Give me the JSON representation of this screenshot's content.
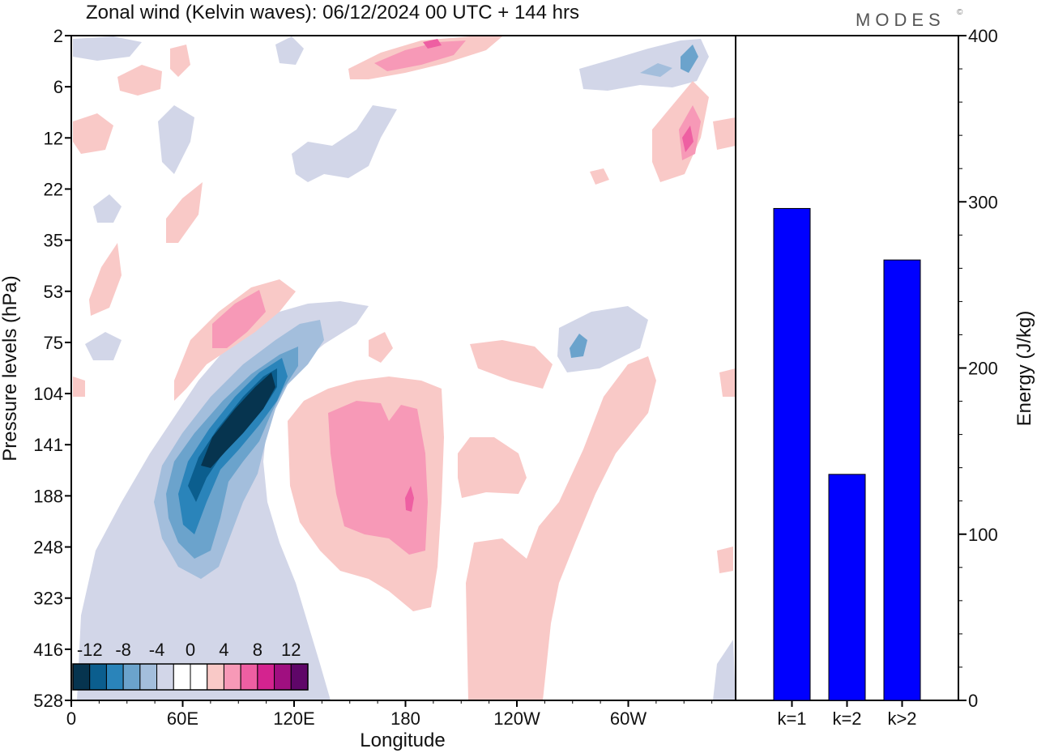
{
  "brand": "MODES",
  "brand_mark": "©",
  "chart_data": [
    {
      "type": "heatmap",
      "title": "Zonal wind (Kelvin waves):  06/12/2024  00 UTC  + 144 hrs",
      "xlabel": "Longitude",
      "ylabel": "Pressure levels (hPa)",
      "x_ticks": [
        "0",
        "60E",
        "120E",
        "180",
        "120W",
        "60W"
      ],
      "y_ticks": [
        "2",
        "6",
        "12",
        "22",
        "35",
        "53",
        "75",
        "104",
        "141",
        "188",
        "248",
        "323",
        "416",
        "528"
      ],
      "colorbar": {
        "labels": [
          "-12",
          "-8",
          "-4",
          "0",
          "4",
          "8",
          "12"
        ],
        "bins": [
          -14,
          -12,
          -10,
          -8,
          -6,
          -4,
          -2,
          0,
          2,
          4,
          6,
          8,
          10,
          12,
          14
        ],
        "colors": [
          "#06344f",
          "#0b5e8e",
          "#2a84ba",
          "#6ba3cc",
          "#a3bedc",
          "#d2d6e8",
          "#ffffff",
          "#ffffff",
          "#f9c9c7",
          "#f799b7",
          "#ee5fa2",
          "#d4238f",
          "#a00f80",
          "#5f0668"
        ]
      },
      "features": [
        {
          "lon": 95,
          "p": 104,
          "value": -14,
          "desc": "strong easterly core"
        },
        {
          "lon": 170,
          "p": 188,
          "value": 8,
          "desc": "westerly core"
        },
        {
          "lon": 85,
          "p": 75,
          "value": 6,
          "desc": "westerly upper lobe"
        }
      ]
    },
    {
      "type": "bar",
      "categories": [
        "k=1",
        "k=2",
        "k>2"
      ],
      "values": [
        296,
        136,
        265
      ],
      "ylabel": "Energy (J/kg)",
      "ylim": [
        0,
        400
      ],
      "y_ticks": [
        "0",
        "100",
        "200",
        "300",
        "400"
      ],
      "bar_color": "#0000ff"
    }
  ]
}
